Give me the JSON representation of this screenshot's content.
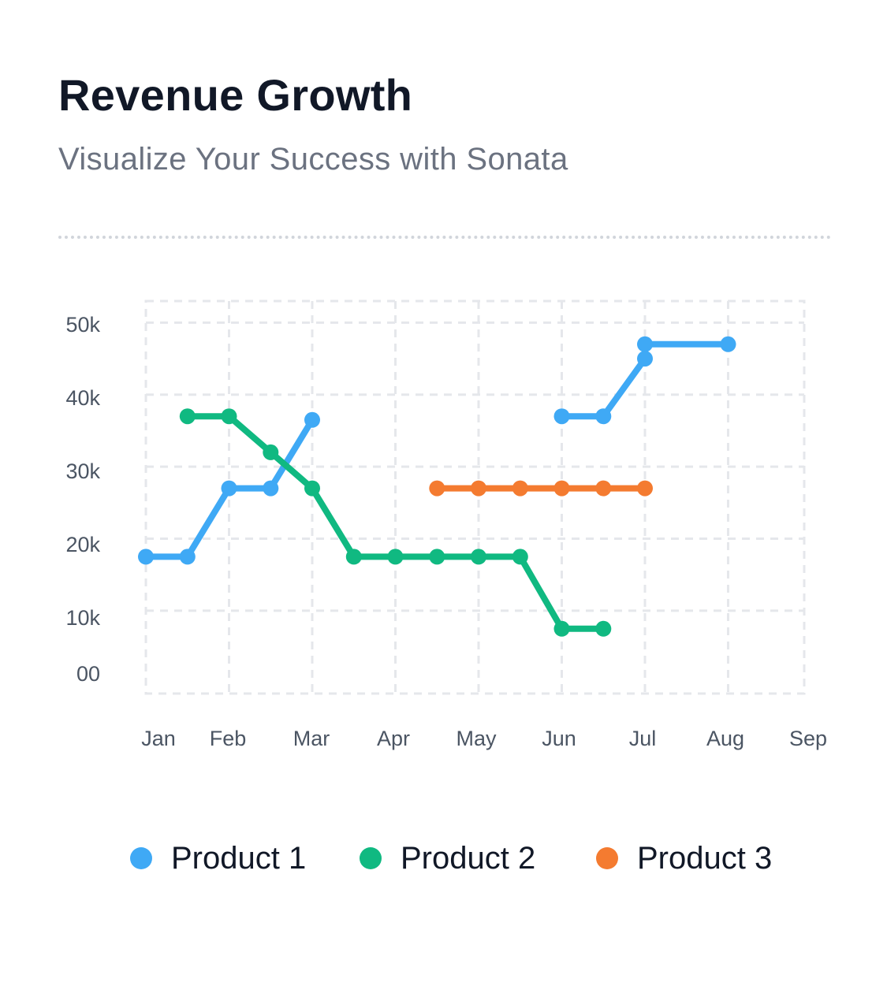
{
  "header": {
    "title": "Revenue Growth",
    "subtitle": "Visualize Your Success with Sonata"
  },
  "chart_data": {
    "type": "line",
    "title": "Revenue Growth",
    "subtitle": "Visualize Your Success with Sonata",
    "xlabel": "",
    "ylabel": "",
    "x_ticks": [
      "Jan",
      "Feb",
      "Mar",
      "Apr",
      "May",
      "Jun",
      "Jul",
      "Aug",
      "Sep"
    ],
    "y_ticks": [
      "00",
      "10k",
      "20k",
      "30k",
      "40k",
      "50k"
    ],
    "y_tick_values": [
      0,
      10000,
      20000,
      30000,
      40000,
      50000
    ],
    "ylim": [
      -1500,
      53000
    ],
    "xlim": [
      0,
      8
    ],
    "grid": true,
    "legend_position": "bottom",
    "series": [
      {
        "name": "Product 1",
        "color": "#3fa9f5",
        "segments": [
          [
            [
              0,
              17500
            ],
            [
              0.5,
              17500
            ],
            [
              1,
              27000
            ],
            [
              1.5,
              27000
            ],
            [
              2,
              36500
            ]
          ],
          [
            [
              5,
              37000
            ],
            [
              5.5,
              37000
            ],
            [
              6,
              45000
            ],
            [
              6,
              47000
            ],
            [
              7,
              47000
            ]
          ]
        ]
      },
      {
        "name": "Product 2",
        "color": "#10b981",
        "segments": [
          [
            [
              0.5,
              37000
            ],
            [
              1,
              37000
            ],
            [
              1.5,
              32000
            ],
            [
              2,
              27000
            ],
            [
              2.5,
              17500
            ],
            [
              3,
              17500
            ],
            [
              3.5,
              17500
            ],
            [
              4,
              17500
            ],
            [
              4.5,
              17500
            ],
            [
              5,
              7500
            ],
            [
              5.5,
              7500
            ]
          ]
        ]
      },
      {
        "name": "Product 3",
        "color": "#f47b30",
        "segments": [
          [
            [
              3.5,
              27000
            ],
            [
              4,
              27000
            ],
            [
              4.5,
              27000
            ],
            [
              5,
              27000
            ],
            [
              5.5,
              27000
            ],
            [
              6,
              27000
            ]
          ]
        ]
      }
    ]
  }
}
